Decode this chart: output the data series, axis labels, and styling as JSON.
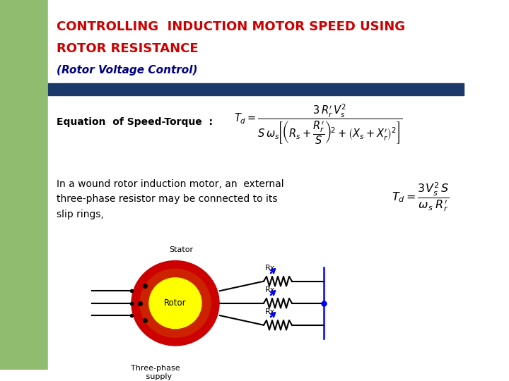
{
  "title_line1": "CONTROLLING  INDUCTION MOTOR SPEED USING",
  "title_line2": "ROTOR RESISTANCE",
  "subtitle": "(Rotor Voltage Control)",
  "title_color": "#CC0000",
  "subtitle_color": "#000080",
  "bg_color": "#FFFFFF",
  "left_panel_color": "#8FBC6E",
  "divider_color": "#1B3A6B",
  "eq_label": "Equation  of Speed-Torque  :",
  "body_line1": "In a wound rotor induction motor, an  external",
  "body_line2": "three-phase resistor may be connected to its",
  "body_line3": "slip rings,"
}
